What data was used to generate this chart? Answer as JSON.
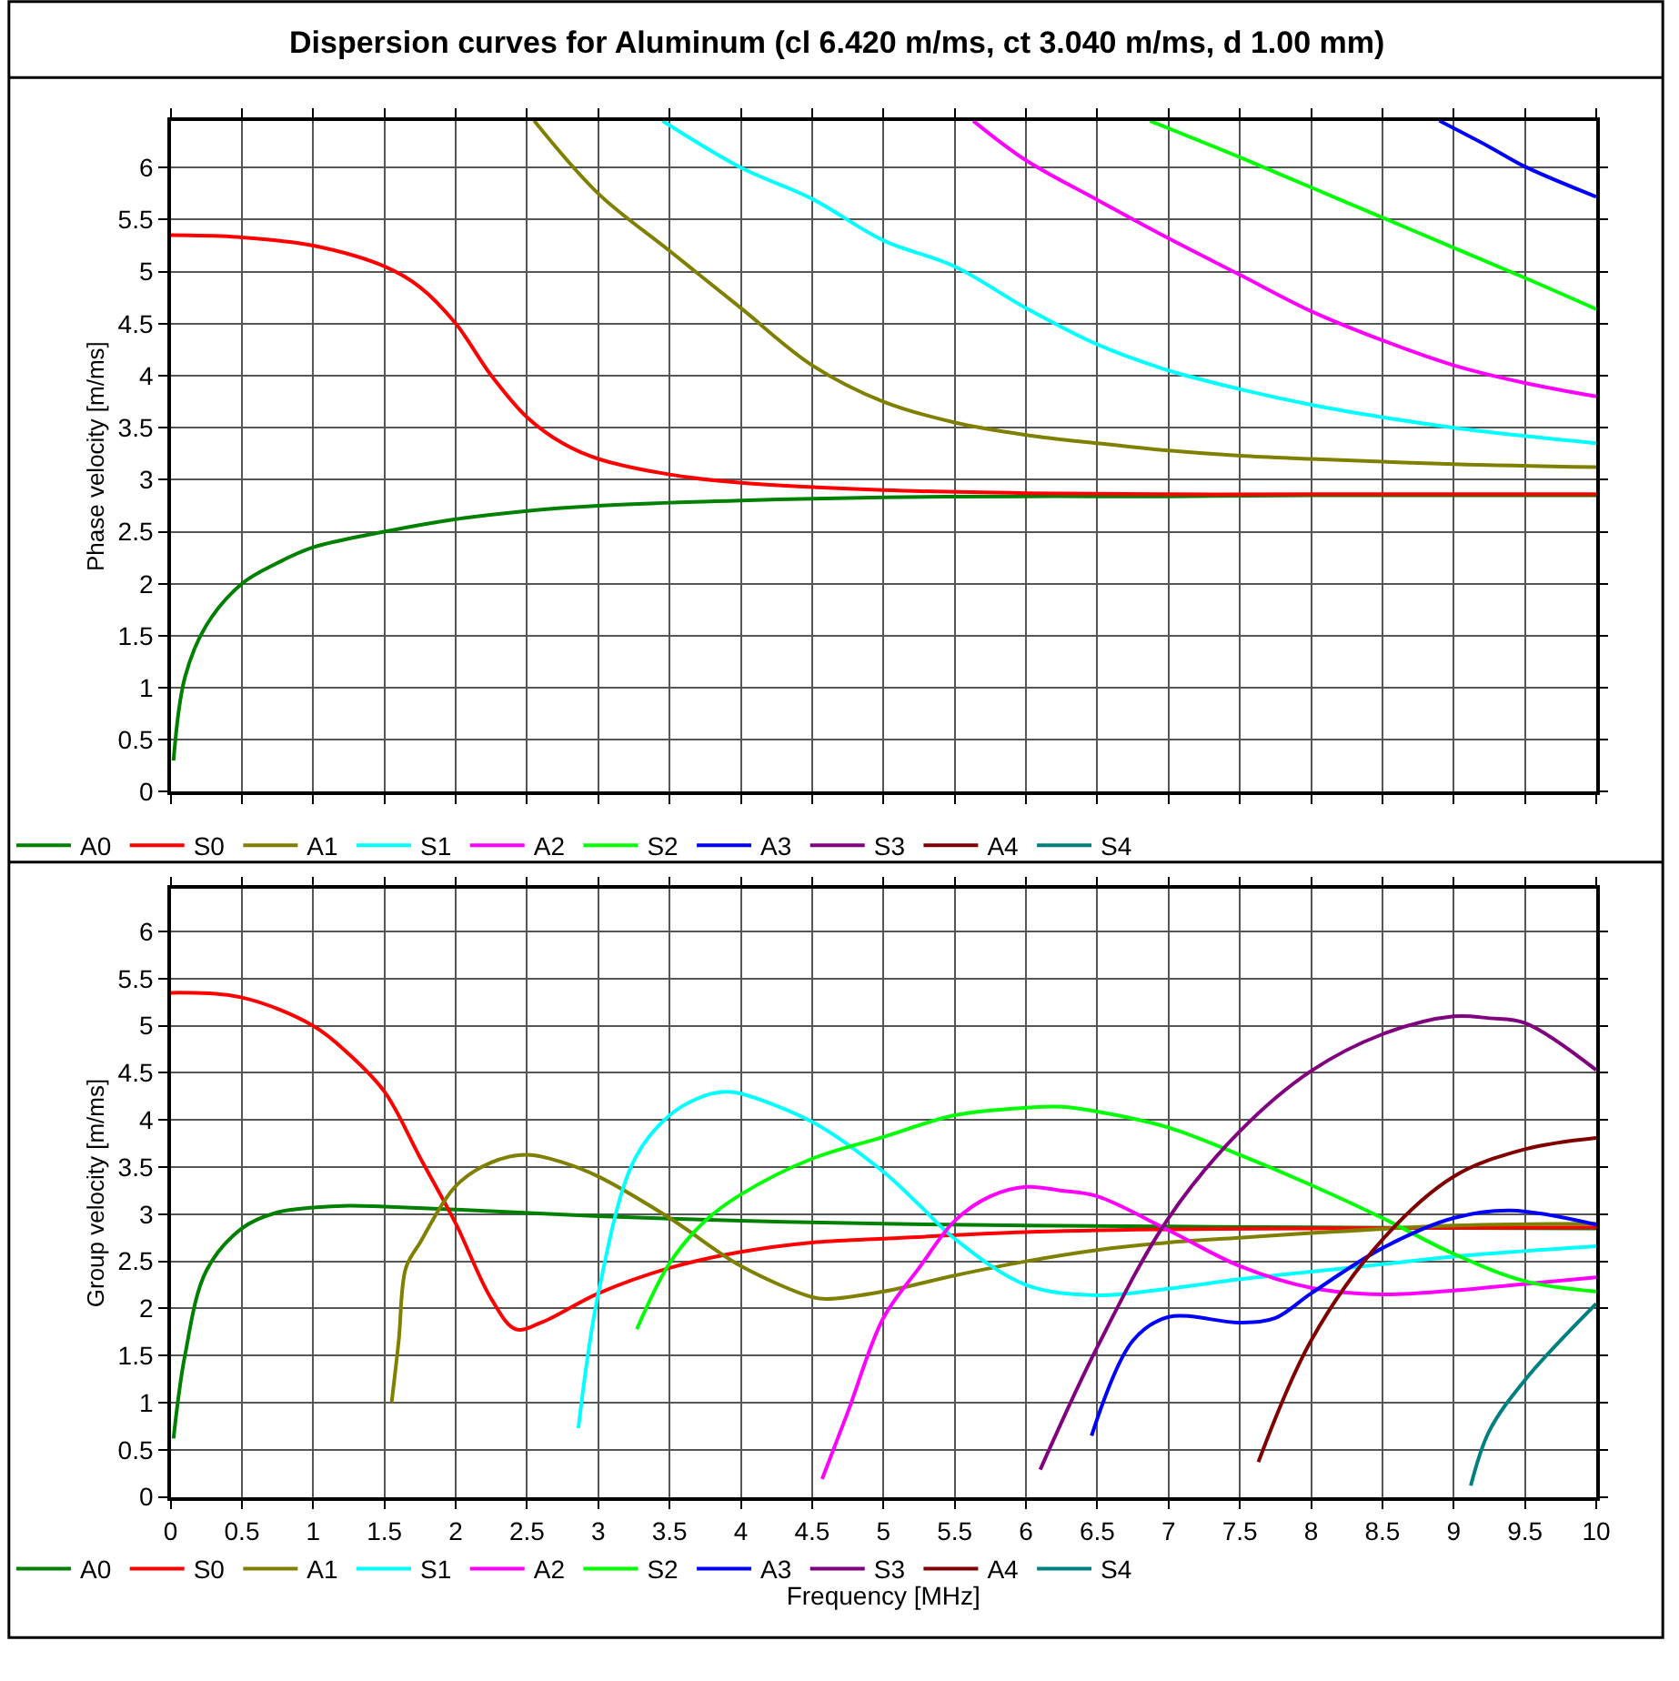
{
  "chart_data": [
    {
      "type": "line",
      "title": "Dispersion curves for Aluminum (cl 6.420 m/ms, ct 3.040 m/ms, d 1.00 mm)",
      "ylabel": "Phase velocity [m/ms]",
      "xlim": [
        0,
        10
      ],
      "xticks": [
        0,
        0.5,
        1,
        1.5,
        2,
        2.5,
        3,
        3.5,
        4,
        4.5,
        5,
        5.5,
        6,
        6.5,
        7,
        7.5,
        8,
        8.5,
        9,
        9.5,
        10
      ],
      "ylim": [
        0,
        6.45
      ],
      "yticks": [
        0,
        0.5,
        1,
        1.5,
        2,
        2.5,
        3,
        3.5,
        4,
        4.5,
        5,
        5.5,
        6
      ],
      "grid": true,
      "legend": "bottom",
      "tick_labels": "y",
      "marker": "none",
      "line_style": "solid",
      "series": [
        {
          "name": "A0",
          "color": "#008000",
          "x": [
            0.02,
            0.1,
            0.25,
            0.5,
            0.75,
            1,
            1.5,
            2,
            2.5,
            3,
            4,
            5,
            6,
            7,
            8,
            10
          ],
          "values": [
            0.3,
            1.1,
            1.6,
            2.0,
            2.2,
            2.35,
            2.5,
            2.62,
            2.7,
            2.75,
            2.8,
            2.83,
            2.84,
            2.84,
            2.85,
            2.85
          ]
        },
        {
          "name": "S0",
          "color": "#ff0000",
          "x": [
            0,
            0.5,
            1,
            1.5,
            1.75,
            2,
            2.25,
            2.5,
            2.75,
            3,
            3.5,
            4,
            5,
            6,
            7,
            8,
            10
          ],
          "values": [
            5.35,
            5.33,
            5.25,
            5.05,
            4.85,
            4.5,
            4.0,
            3.6,
            3.35,
            3.2,
            3.05,
            2.97,
            2.9,
            2.87,
            2.86,
            2.86,
            2.86
          ]
        },
        {
          "name": "A1",
          "color": "#808000",
          "x": [
            2.55,
            3,
            3.5,
            4,
            4.5,
            5,
            5.5,
            6,
            6.5,
            7,
            7.5,
            8,
            9,
            10
          ],
          "values": [
            6.45,
            5.75,
            5.2,
            4.65,
            4.1,
            3.75,
            3.55,
            3.43,
            3.35,
            3.28,
            3.23,
            3.2,
            3.15,
            3.12
          ]
        },
        {
          "name": "S1",
          "color": "#00ffff",
          "x": [
            3.45,
            4,
            4.5,
            5,
            5.5,
            6,
            6.5,
            7,
            7.5,
            8,
            8.5,
            9,
            9.5,
            10
          ],
          "values": [
            6.45,
            6.0,
            5.7,
            5.3,
            5.05,
            4.65,
            4.3,
            4.05,
            3.87,
            3.72,
            3.6,
            3.5,
            3.42,
            3.35
          ]
        },
        {
          "name": "A2",
          "color": "#ff00ff",
          "x": [
            5.63,
            6,
            6.5,
            7,
            7.5,
            8,
            8.5,
            9,
            9.5,
            10
          ],
          "values": [
            6.45,
            6.07,
            5.69,
            5.32,
            4.97,
            4.62,
            4.34,
            4.1,
            3.93,
            3.8
          ]
        },
        {
          "name": "S2",
          "color": "#00ff00",
          "x": [
            6.87,
            7.5,
            8,
            8.5,
            9,
            9.5,
            10
          ],
          "values": [
            6.45,
            6.1,
            5.81,
            5.52,
            5.23,
            4.94,
            4.64
          ]
        },
        {
          "name": "A3",
          "color": "#0000ff",
          "x": [
            8.9,
            9.25,
            9.5,
            10
          ],
          "values": [
            6.45,
            6.2,
            6.01,
            5.72
          ]
        },
        {
          "name": "S3",
          "color": "#800080"
        },
        {
          "name": "A4",
          "color": "#800000"
        },
        {
          "name": "S4",
          "color": "#008080"
        }
      ]
    },
    {
      "type": "line",
      "ylabel": "Group velocity [m/ms]",
      "xlabel": "Frequency [MHz]",
      "xlim": [
        0,
        10
      ],
      "xticks": [
        0,
        0.5,
        1,
        1.5,
        2,
        2.5,
        3,
        3.5,
        4,
        4.5,
        5,
        5.5,
        6,
        6.5,
        7,
        7.5,
        8,
        8.5,
        9,
        9.5,
        10
      ],
      "ylim": [
        0,
        6.45
      ],
      "yticks": [
        0,
        0.5,
        1,
        1.5,
        2,
        2.5,
        3,
        3.5,
        4,
        4.5,
        5,
        5.5,
        6
      ],
      "grid": true,
      "legend": "bottom",
      "marker": "none",
      "line_style": "solid",
      "series": [
        {
          "name": "A0",
          "color": "#008000",
          "x": [
            0.02,
            0.1,
            0.25,
            0.5,
            0.75,
            1,
            1.25,
            1.5,
            2,
            3,
            4,
            5,
            6,
            7,
            8,
            10
          ],
          "values": [
            0.62,
            1.5,
            2.4,
            2.85,
            3.02,
            3.07,
            3.09,
            3.08,
            3.05,
            2.98,
            2.93,
            2.9,
            2.88,
            2.87,
            2.86,
            2.85
          ]
        },
        {
          "name": "S0",
          "color": "#ff0000",
          "x": [
            0,
            0.5,
            1,
            1.25,
            1.5,
            1.75,
            2,
            2.25,
            2.42,
            2.6,
            3,
            3.5,
            4,
            4.5,
            5,
            6,
            7,
            8,
            10
          ],
          "values": [
            5.35,
            5.3,
            5.0,
            4.7,
            4.3,
            3.6,
            2.9,
            2.1,
            1.78,
            1.85,
            2.16,
            2.43,
            2.6,
            2.7,
            2.74,
            2.81,
            2.84,
            2.85,
            2.86
          ]
        },
        {
          "name": "A1",
          "color": "#808000",
          "x": [
            1.55,
            1.6,
            1.65,
            1.75,
            2,
            2.25,
            2.5,
            2.75,
            3,
            3.5,
            4,
            4.5,
            4.6,
            5,
            5.5,
            6,
            6.5,
            7,
            7.5,
            8,
            9,
            10
          ],
          "values": [
            1.0,
            1.66,
            2.43,
            2.7,
            3.3,
            3.55,
            3.63,
            3.55,
            3.4,
            2.96,
            2.45,
            2.12,
            2.1,
            2.18,
            2.35,
            2.5,
            2.62,
            2.7,
            2.75,
            2.8,
            2.88,
            2.9
          ]
        },
        {
          "name": "S1",
          "color": "#00ffff",
          "x": [
            2.86,
            3,
            3.25,
            3.5,
            3.75,
            3.9,
            4,
            4.5,
            5,
            5.25,
            5.5,
            6,
            6.5,
            7,
            7.5,
            8,
            8.5,
            9,
            10
          ],
          "values": [
            0.73,
            2.16,
            3.57,
            4.05,
            4.26,
            4.3,
            4.28,
            3.98,
            3.45,
            3.1,
            2.74,
            2.25,
            2.14,
            2.21,
            2.31,
            2.39,
            2.47,
            2.55,
            2.66
          ]
        },
        {
          "name": "A2",
          "color": "#ff00ff",
          "x": [
            4.57,
            4.75,
            5,
            5.25,
            5.5,
            5.75,
            6,
            6.25,
            6.5,
            7,
            7.5,
            8,
            8.5,
            9,
            9.5,
            10
          ],
          "values": [
            0.19,
            0.9,
            1.9,
            2.43,
            2.93,
            3.19,
            3.29,
            3.25,
            3.19,
            2.83,
            2.45,
            2.22,
            2.15,
            2.19,
            2.26,
            2.33
          ]
        },
        {
          "name": "S2",
          "color": "#00ff00",
          "x": [
            3.27,
            3.5,
            3.75,
            4,
            4.5,
            5,
            5.5,
            6,
            6.25,
            6.5,
            7,
            7.5,
            8,
            8.5,
            9,
            9.5,
            10
          ],
          "values": [
            1.78,
            2.48,
            2.93,
            3.21,
            3.59,
            3.82,
            4.05,
            4.13,
            4.14,
            4.09,
            3.92,
            3.63,
            3.31,
            2.96,
            2.58,
            2.29,
            2.18
          ]
        },
        {
          "name": "A3",
          "color": "#0000ff",
          "x": [
            6.46,
            6.75,
            7,
            7.5,
            7.75,
            8,
            8.5,
            9,
            9.4,
            10
          ],
          "values": [
            0.65,
            1.66,
            1.91,
            1.85,
            1.9,
            2.16,
            2.64,
            2.96,
            3.04,
            2.89
          ]
        },
        {
          "name": "S3",
          "color": "#800080",
          "x": [
            6.1,
            6.5,
            7,
            7.5,
            8,
            8.5,
            9,
            9.25,
            9.5,
            10
          ],
          "values": [
            0.29,
            1.59,
            2.96,
            3.88,
            4.52,
            4.91,
            5.1,
            5.08,
            5.03,
            4.53
          ]
        },
        {
          "name": "A4",
          "color": "#800000",
          "x": [
            7.63,
            8,
            8.5,
            9,
            9.5,
            10
          ],
          "values": [
            0.37,
            1.66,
            2.73,
            3.4,
            3.69,
            3.81
          ]
        },
        {
          "name": "S4",
          "color": "#008080",
          "x": [
            9.12,
            9.25,
            9.5,
            10
          ],
          "values": [
            0.12,
            0.7,
            1.24,
            2.05
          ]
        }
      ]
    }
  ]
}
